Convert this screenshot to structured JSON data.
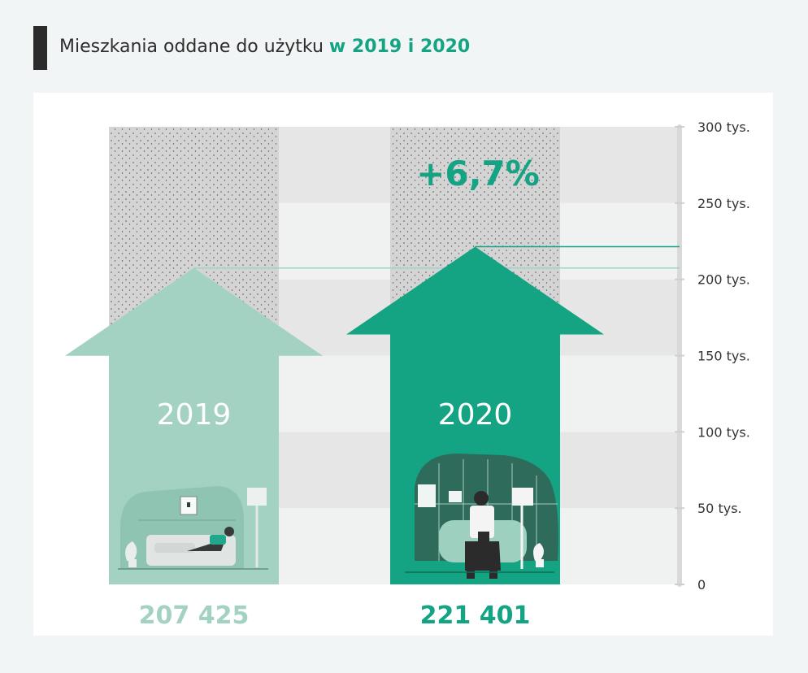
{
  "header": {
    "title_prefix": "Mieszkania oddane do użytku ",
    "title_highlight": "w 2019 i 2020"
  },
  "colors": {
    "accent": "#14a383",
    "light": "#a3d1c2",
    "dark": "#2b2b2b",
    "band_light": "#f0f2f2",
    "band_dark": "#e6e6e6",
    "texture": "#d2d2d2"
  },
  "chart_data": {
    "type": "bar",
    "categories": [
      "2019",
      "2020"
    ],
    "values": [
      207425,
      221401
    ],
    "value_labels": [
      "207 425",
      "221 401"
    ],
    "ylim": [
      0,
      300000
    ],
    "yticks": [
      0,
      50000,
      100000,
      150000,
      200000,
      250000,
      300000
    ],
    "ytick_labels": [
      "0",
      "50 tys.",
      "100 tys.",
      "150 tys.",
      "200 tys.",
      "250 tys.",
      "300 tys."
    ],
    "annotation": "+6,7%",
    "grid": true,
    "bar_colors": [
      "#a3d1c2",
      "#14a383"
    ]
  }
}
